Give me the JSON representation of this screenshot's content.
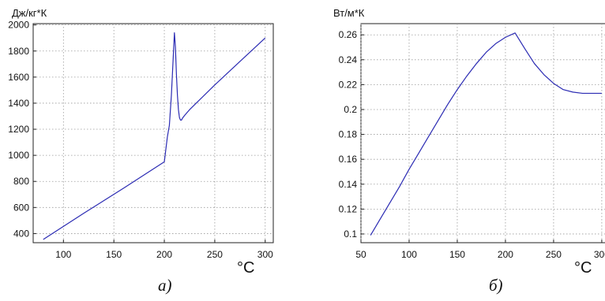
{
  "chart_data": [
    {
      "type": "line",
      "ylabel": "Дж/кг*К",
      "xlabel": "°C",
      "caption": "а)",
      "xlim": [
        70,
        308
      ],
      "ylim": [
        330,
        2010
      ],
      "xticks": [
        100,
        150,
        200,
        250,
        300
      ],
      "yticks": [
        400,
        600,
        800,
        1000,
        1200,
        1400,
        1600,
        1800,
        2000
      ],
      "grid": true,
      "color": "#2b2bb3",
      "series": [
        {
          "x": [
            80,
            120,
            160,
            200,
            203,
            205,
            207,
            209,
            210,
            211,
            212,
            213,
            214,
            215,
            216,
            217,
            218,
            220,
            225,
            250,
            275,
            300
          ],
          "y": [
            355,
            555,
            750,
            950,
            1140,
            1230,
            1460,
            1780,
            1940,
            1830,
            1620,
            1460,
            1350,
            1290,
            1270,
            1270,
            1285,
            1305,
            1350,
            1540,
            1720,
            1900
          ]
        }
      ]
    },
    {
      "type": "line",
      "ylabel": "Вт/м*К",
      "xlabel": "°C",
      "caption": "б)",
      "xlim": [
        50,
        305
      ],
      "ylim": [
        0.093,
        0.269
      ],
      "xticks": [
        50,
        100,
        150,
        200,
        250,
        300
      ],
      "yticks": [
        0.1,
        0.12,
        0.14,
        0.16,
        0.18,
        0.2,
        0.22,
        0.24,
        0.26
      ],
      "grid": true,
      "color": "#2b2bb3",
      "series": [
        {
          "x": [
            60,
            70,
            80,
            90,
            100,
            110,
            120,
            130,
            140,
            150,
            160,
            170,
            180,
            190,
            200,
            210,
            220,
            230,
            240,
            250,
            260,
            270,
            280,
            290,
            300
          ],
          "y": [
            0.099,
            0.112,
            0.125,
            0.138,
            0.152,
            0.165,
            0.178,
            0.191,
            0.204,
            0.216,
            0.227,
            0.237,
            0.246,
            0.253,
            0.258,
            0.2615,
            0.249,
            0.237,
            0.228,
            0.221,
            0.216,
            0.214,
            0.213,
            0.213,
            0.213
          ]
        }
      ]
    }
  ]
}
